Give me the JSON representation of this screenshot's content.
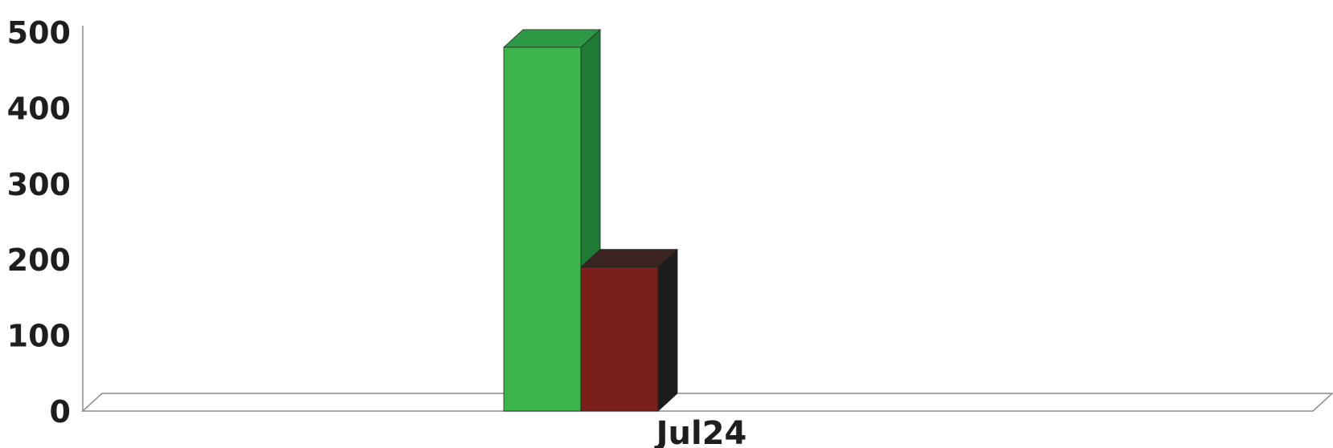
{
  "chart_data": {
    "type": "bar",
    "title": "",
    "xlabel": "",
    "ylabel": "",
    "categories": [
      "Jul24"
    ],
    "series": [
      {
        "values": [
          480
        ],
        "color": "#3cb54a",
        "side_color": "#1f7a35",
        "top_color": "#2e9a45"
      },
      {
        "values": [
          190
        ],
        "color": "#7a1f1a",
        "side_color": "#1c1c1c",
        "top_color": "#3a2520"
      }
    ],
    "ylim": [
      0,
      500
    ],
    "yticks": [
      "0",
      "100",
      "200",
      "300",
      "400",
      "500"
    ],
    "grid": false,
    "legend": "none",
    "style": "3d"
  }
}
